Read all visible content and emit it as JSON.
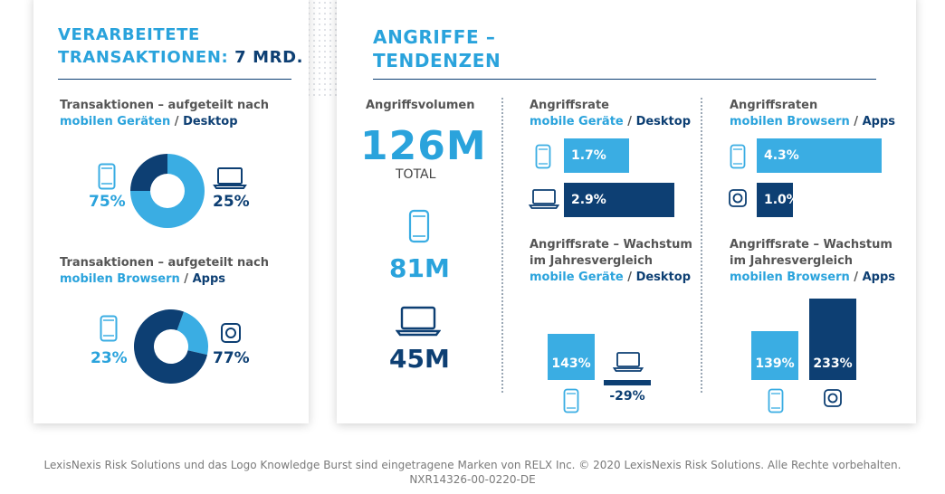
{
  "left_panel": {
    "title_line1": "VERARBEITETE",
    "title_line2_pre": "TRANSAKTIONEN: ",
    "title_line2_value": "7 Mrd.",
    "section1": {
      "line1": "Transaktionen – aufgeteilt nach",
      "mobile": "mobilen Geräten",
      "sep": " / ",
      "desktop": "Desktop"
    },
    "section2": {
      "line1": "Transaktionen – aufgeteilt nach",
      "browser": "mobilen Browsern",
      "sep": "  / ",
      "apps": "Apps"
    }
  },
  "right_panel": {
    "title_line1": "ANGRIFFE –",
    "title_line2": "TENDENZEN",
    "volume": {
      "label": "Angriffsvolumen",
      "total_value": "126M",
      "total_label": "TOTAL",
      "mobile_value": "81M",
      "desktop_value": "45M"
    },
    "rate_devices": {
      "line1": "Angriffsrate",
      "mobile": "mobile Geräte",
      "sep": " / ",
      "desktop": "Desktop"
    },
    "rate_browsers": {
      "line1": "Angriffsraten",
      "browser": "mobilen Browsern",
      "sep": " / ",
      "apps": "Apps"
    },
    "growth_devices": {
      "line1": "Angriffsrate – Wachstum",
      "line2": "im Jahresvergleich",
      "mobile": "mobile Geräte",
      "sep": " / ",
      "desktop": "Desktop"
    },
    "growth_browsers": {
      "line1": "Angriffsrate – Wachstum",
      "line2": "im Jahresvergleich",
      "browser": "mobilen Browsern",
      "sep": " / ",
      "apps": "Apps"
    }
  },
  "footer": {
    "line1": "LexisNexis Risk Solutions und das Logo Knowledge Burst sind eingetragene Marken von RELX Inc. © 2020 LexisNexis Risk Solutions. Alle Rechte vorbehalten.",
    "line2": "NXR14326-00-0220-DE"
  },
  "colors": {
    "light_blue": "#3aade3",
    "dark_blue": "#0d3f73",
    "accent": "#2aa3dc"
  },
  "icons": [
    "smartphone-icon",
    "laptop-icon",
    "app-icon"
  ],
  "chart_data": [
    {
      "type": "pie",
      "title": "Transaktionen – aufgeteilt nach mobilen Geräten / Desktop",
      "categories": [
        "mobile Geräte",
        "Desktop"
      ],
      "values": [
        75,
        25
      ],
      "labels": [
        "75%",
        "25%"
      ]
    },
    {
      "type": "pie",
      "title": "Transaktionen – aufgeteilt nach mobilen Browsern / Apps",
      "categories": [
        "mobilen Browsern",
        "Apps"
      ],
      "values": [
        23,
        77
      ],
      "labels": [
        "23%",
        "77%"
      ]
    },
    {
      "type": "bar",
      "title": "Angriffsrate mobile Geräte / Desktop",
      "categories": [
        "mobile Geräte",
        "Desktop"
      ],
      "values": [
        1.7,
        2.9
      ],
      "labels": [
        "1.7%",
        "2.9%"
      ]
    },
    {
      "type": "bar",
      "title": "Angriffsraten mobilen Browsern / Apps",
      "categories": [
        "mobilen Browsern",
        "Apps"
      ],
      "values": [
        4.3,
        1.0
      ],
      "labels": [
        "4.3%",
        "1.0%"
      ]
    },
    {
      "type": "bar",
      "title": "Angriffsrate – Wachstum im Jahresvergleich mobile Geräte / Desktop",
      "categories": [
        "mobile Geräte",
        "Desktop"
      ],
      "values": [
        143,
        -29
      ],
      "labels": [
        "143%",
        "-29%"
      ]
    },
    {
      "type": "bar",
      "title": "Angriffsrate – Wachstum im Jahresvergleich mobilen Browsern / Apps",
      "categories": [
        "mobilen Browsern",
        "Apps"
      ],
      "values": [
        139,
        233
      ],
      "labels": [
        "139%",
        "233%"
      ]
    }
  ]
}
